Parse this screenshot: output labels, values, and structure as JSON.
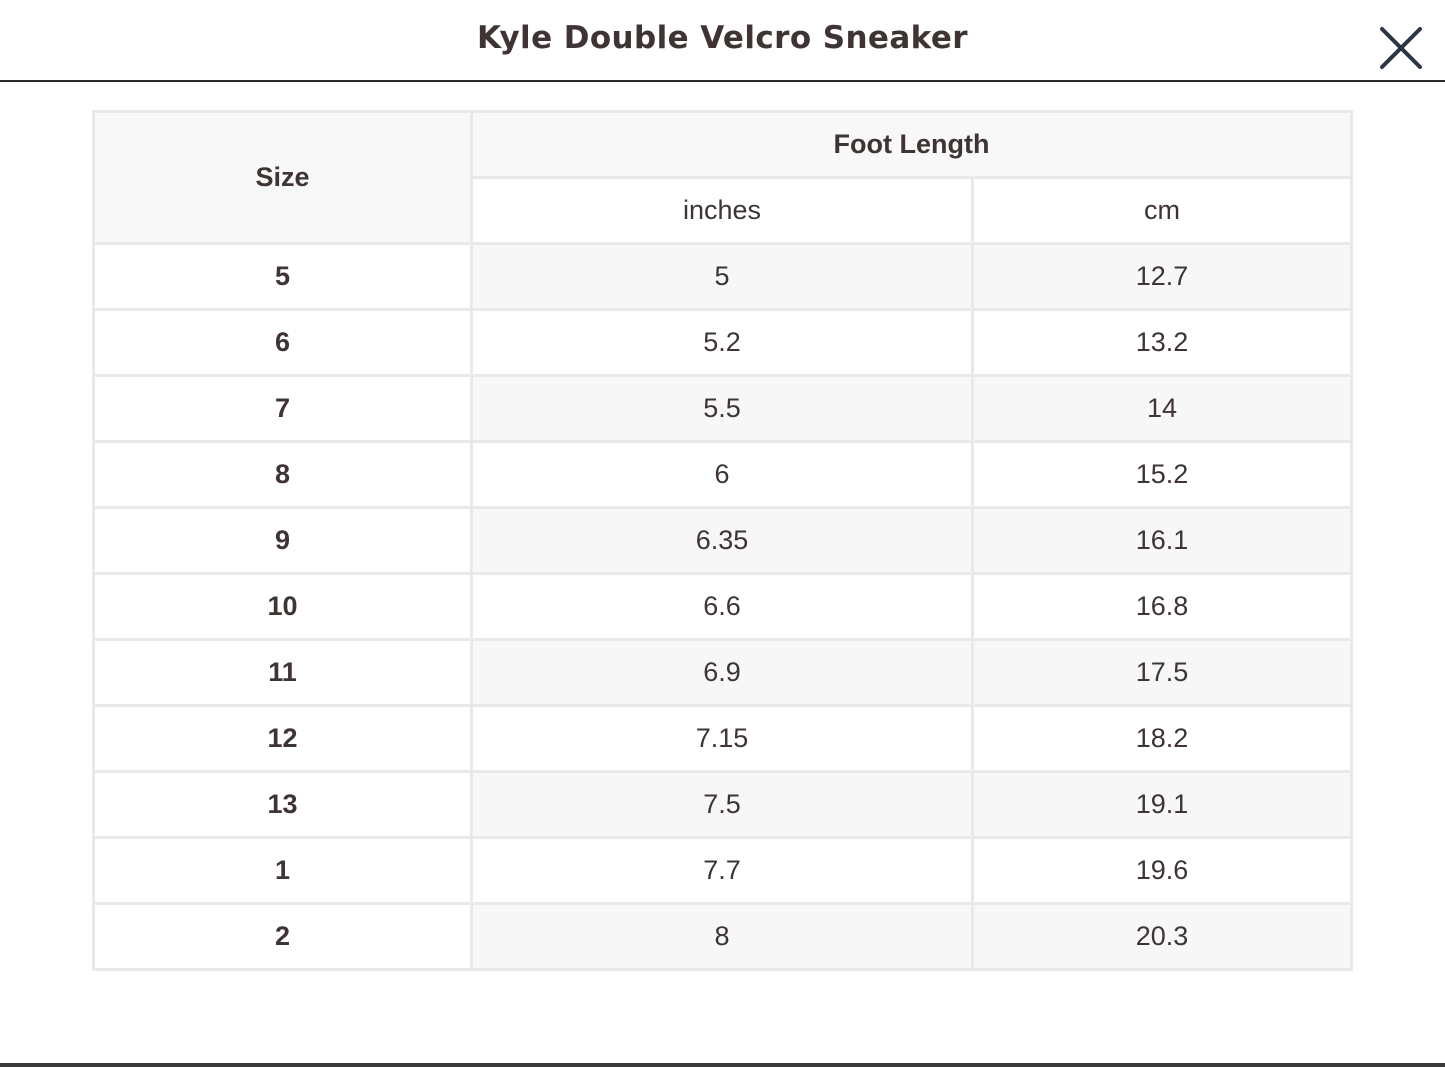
{
  "modal": {
    "title": "Kyle Double Velcro Sneaker",
    "close_icon": "close-icon"
  },
  "table": {
    "size_header": "Size",
    "group_header": "Foot Length",
    "unit_inches": "inches",
    "unit_cm": "cm",
    "rows": [
      {
        "size": "5",
        "inches": "5",
        "cm": "12.7"
      },
      {
        "size": "6",
        "inches": "5.2",
        "cm": "13.2"
      },
      {
        "size": "7",
        "inches": "5.5",
        "cm": "14"
      },
      {
        "size": "8",
        "inches": "6",
        "cm": "15.2"
      },
      {
        "size": "9",
        "inches": "6.35",
        "cm": "16.1"
      },
      {
        "size": "10",
        "inches": "6.6",
        "cm": "16.8"
      },
      {
        "size": "11",
        "inches": "6.9",
        "cm": "17.5"
      },
      {
        "size": "12",
        "inches": "7.15",
        "cm": "18.2"
      },
      {
        "size": "13",
        "inches": "7.5",
        "cm": "19.1"
      },
      {
        "size": "1",
        "inches": "7.7",
        "cm": "19.6"
      },
      {
        "size": "2",
        "inches": "8",
        "cm": "20.3"
      }
    ]
  },
  "colors": {
    "text": "#3d3433",
    "border": "#e9e9e9",
    "header_bg": "#f8f8f8",
    "stripe_bg": "#f7f7f7",
    "rule": "#2b2b2b"
  }
}
